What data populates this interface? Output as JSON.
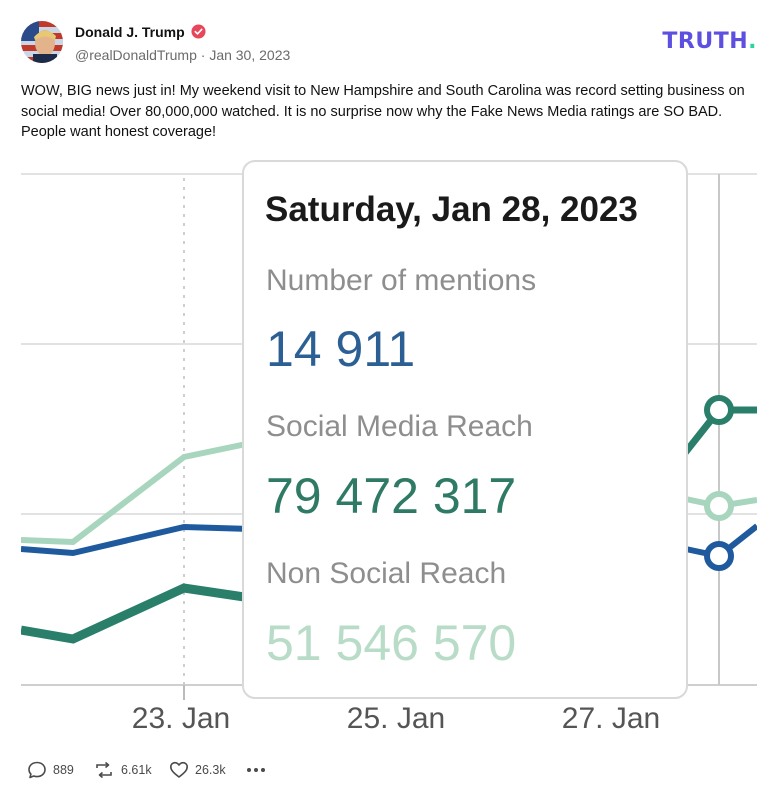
{
  "post": {
    "author_name": "Donald J. Trump",
    "handle": "@realDonaldTrump",
    "separator": "·",
    "date": "Jan 30, 2023",
    "text": "WOW, BIG news just in! My weekend visit to New Hampshire and South Carolina was record setting business on social media! Over 80,000,000 watched. It is no surprise now why the Fake News Media ratings are SO BAD. People want honest coverage!"
  },
  "brand": {
    "logo_text": "TRUTH",
    "logo_dot": ".",
    "color": "#5d4fe0",
    "dot_color": "#2dd4a0"
  },
  "icons": {
    "verified": "verified-badge-icon",
    "reply": "speech-bubble-icon",
    "retruth": "repost-arrows-icon",
    "like": "heart-icon",
    "more": "more-dots-icon"
  },
  "tooltip": {
    "date": "Saturday, Jan 28, 2023",
    "mentions_label": "Number of mentions",
    "mentions_value": "14 911",
    "social_label": "Social Media Reach",
    "social_value": "79 472 317",
    "nonsocial_label": "Non Social Reach",
    "nonsocial_value": "51 546 570"
  },
  "chart_data": {
    "type": "line",
    "x_ticks": [
      "23. Jan",
      "25. Jan",
      "27. Jan"
    ],
    "series": [
      {
        "color": "#2a7f6a"
      },
      {
        "color": "#1f5a9e"
      },
      {
        "color": "#a8d5be"
      }
    ],
    "grid": true
  },
  "actions": {
    "reply_count": "889",
    "retruth_count": "6.61k",
    "like_count": "26.3k"
  },
  "colors": {
    "mentions": "#2c5f94",
    "social": "#2f7a64",
    "nonsocial": "#b9dcc8"
  }
}
